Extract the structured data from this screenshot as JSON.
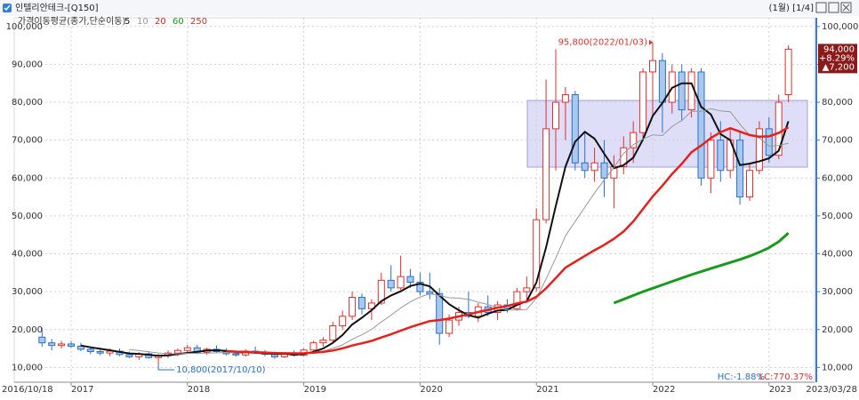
{
  "header": {
    "title": "인텔리안테크-[Q150]",
    "period": "(1월) [1/4]"
  },
  "chart_data": {
    "type": "candlestick",
    "indicator": "가격이동평균(종가,단순이동)",
    "categories": [
      "2016/10/18",
      null,
      null,
      "2017",
      null,
      null,
      null,
      null,
      null,
      null,
      null,
      null,
      null,
      null,
      null,
      "2018",
      null,
      null,
      null,
      null,
      null,
      null,
      null,
      null,
      null,
      null,
      null,
      "2019",
      null,
      null,
      null,
      null,
      null,
      null,
      null,
      null,
      null,
      null,
      null,
      "2020",
      null,
      null,
      null,
      null,
      null,
      null,
      null,
      null,
      null,
      null,
      null,
      "2021",
      null,
      null,
      null,
      null,
      null,
      null,
      null,
      null,
      null,
      null,
      null,
      "2022",
      null,
      null,
      null,
      null,
      null,
      null,
      null,
      null,
      null,
      null,
      null,
      "2023",
      null,
      "2023/03/28"
    ],
    "open": [
      18000,
      16500,
      15800,
      16200,
      15600,
      14800,
      14200,
      13800,
      14300,
      13400,
      12800,
      13600,
      12600,
      13100,
      13800,
      14500,
      15200,
      14000,
      14800,
      14200,
      13600,
      13300,
      14300,
      13900,
      13500,
      12800,
      13500,
      13200,
      14600,
      16500,
      17200,
      21000,
      23500,
      28500,
      25500,
      27000,
      33000,
      31000,
      34000,
      32500,
      30000,
      29500,
      19000,
      22500,
      24500,
      23500,
      26000,
      24500,
      26500,
      25500,
      30000,
      31000,
      49000,
      73000,
      80000,
      82000,
      64000,
      62000,
      64000,
      60000,
      63000,
      68000,
      72000,
      88000,
      91000,
      80000,
      88000,
      78000,
      88000,
      60000,
      70000,
      62000,
      70000,
      55000,
      62000,
      73000,
      66000,
      82000
    ],
    "high": [
      20500,
      17500,
      17000,
      17000,
      16500,
      15500,
      15200,
      15000,
      15000,
      14200,
      14000,
      14200,
      13500,
      14500,
      15000,
      16000,
      16000,
      15200,
      15800,
      15000,
      14500,
      14800,
      15500,
      14600,
      14200,
      14000,
      14500,
      15000,
      17000,
      18000,
      22000,
      25000,
      30000,
      29500,
      28000,
      35000,
      37000,
      39500,
      36000,
      35000,
      35000,
      31000,
      24000,
      26000,
      30000,
      27000,
      29000,
      27500,
      28000,
      31000,
      34000,
      52000,
      86000,
      94000,
      84000,
      83000,
      72000,
      68000,
      70000,
      66000,
      71000,
      75000,
      89000,
      95800,
      93000,
      90000,
      90000,
      89000,
      89000,
      72000,
      75000,
      73000,
      72000,
      64000,
      75000,
      76000,
      82000,
      95000
    ],
    "low": [
      15500,
      14500,
      15000,
      15200,
      14300,
      13500,
      13200,
      13000,
      13000,
      12500,
      12000,
      12300,
      10800,
      12500,
      13000,
      13800,
      13500,
      13300,
      13800,
      13200,
      12800,
      12900,
      13600,
      13000,
      12300,
      12500,
      12800,
      13000,
      14200,
      15500,
      16800,
      20000,
      22500,
      24000,
      22500,
      26500,
      30000,
      30500,
      31000,
      29000,
      28000,
      16000,
      18000,
      21000,
      23000,
      22000,
      23500,
      22500,
      24500,
      25000,
      28000,
      30000,
      48000,
      62000,
      70000,
      62000,
      60000,
      59000,
      55000,
      52000,
      61000,
      64000,
      70000,
      76000,
      72000,
      77000,
      75000,
      76000,
      58000,
      56000,
      59000,
      60000,
      53000,
      54000,
      61000,
      64000,
      65000,
      80000
    ],
    "close": [
      16500,
      15800,
      16200,
      15600,
      14800,
      14200,
      13800,
      14300,
      13400,
      12800,
      13600,
      12600,
      13100,
      13800,
      14500,
      15200,
      14000,
      14800,
      14200,
      13600,
      13300,
      14300,
      13900,
      13500,
      12800,
      13500,
      13200,
      14600,
      16500,
      17200,
      21000,
      23500,
      28500,
      25500,
      27000,
      33000,
      31000,
      34000,
      32500,
      30000,
      29500,
      19000,
      22500,
      24500,
      23500,
      26000,
      24500,
      26500,
      25500,
      30000,
      31000,
      49000,
      73000,
      80000,
      82000,
      64000,
      62000,
      64000,
      60000,
      63000,
      68000,
      72000,
      88000,
      91000,
      80000,
      88000,
      78000,
      88000,
      60000,
      70000,
      62000,
      70000,
      55000,
      62000,
      73000,
      66000,
      80000,
      94000
    ],
    "up_color": "#e0302c",
    "down_color": "#2a6fc9",
    "series": [
      {
        "name": "5",
        "color": "#111111",
        "width": 2,
        "values": [
          null,
          null,
          null,
          null,
          15780,
          15320,
          14920,
          14540,
          14100,
          13700,
          13580,
          13340,
          13100,
          13180,
          13520,
          13840,
          14120,
          14460,
          14540,
          14360,
          13980,
          14040,
          13860,
          13720,
          13560,
          13600,
          13380,
          13520,
          14120,
          15000,
          16500,
          18560,
          21340,
          23140,
          25100,
          27500,
          29000,
          30100,
          31500,
          32100,
          31400,
          29000,
          26700,
          25100,
          23800,
          23100,
          24200,
          25000,
          25200,
          26500,
          27500,
          32400,
          41700,
          52600,
          63000,
          69600,
          72200,
          70400,
          66400,
          62600,
          63400,
          65400,
          70200,
          76400,
          79800,
          83800,
          85000,
          85000,
          78800,
          76800,
          71600,
          70000,
          63400,
          63800,
          64400,
          65200,
          67200,
          75000
        ]
      },
      {
        "name": "10",
        "color": "#999999",
        "width": 1,
        "values": [
          null,
          null,
          null,
          null,
          null,
          null,
          null,
          null,
          null,
          14740,
          14450,
          14130,
          13820,
          13640,
          13610,
          13710,
          13730,
          13780,
          13860,
          13940,
          13910,
          14080,
          14160,
          14130,
          13960,
          13790,
          13710,
          13690,
          13920,
          14280,
          15050,
          15970,
          17430,
          18630,
          20050,
          22000,
          23780,
          25720,
          27320,
          28600,
          29450,
          29000,
          28400,
          28300,
          27950,
          27250,
          26600,
          25850,
          25150,
          25150,
          25300,
          28300,
          33350,
          38900,
          44750,
          48550,
          52300,
          56050,
          59500,
          62800,
          66500,
          68800,
          70300,
          71400,
          71200,
          73600,
          75200,
          77600,
          77600,
          78300,
          77700,
          77500,
          74200,
          71300,
          70600,
          68400,
          68600,
          69200
        ]
      },
      {
        "name": "20",
        "color": "#e8201c",
        "width": 2.5,
        "values": [
          null,
          null,
          null,
          null,
          null,
          null,
          null,
          null,
          null,
          null,
          null,
          null,
          null,
          null,
          null,
          null,
          null,
          null,
          null,
          14340,
          14180,
          14110,
          13990,
          13890,
          13790,
          13750,
          13720,
          13740,
          13890,
          14110,
          14480,
          15030,
          15800,
          16380,
          17010,
          17900,
          18750,
          19710,
          20620,
          21440,
          22250,
          22490,
          22920,
          23470,
          24000,
          24630,
          25190,
          25790,
          26240,
          26880,
          27380,
          28650,
          30880,
          33600,
          36350,
          37900,
          39450,
          40950,
          42330,
          43980,
          45900,
          48550,
          51830,
          55150,
          57980,
          61080,
          63750,
          66830,
          68550,
          70550,
          72100,
          73150,
          72250,
          71350,
          70900,
          71000,
          71900,
          73400
        ]
      },
      {
        "name": "60",
        "color": "#1a9a1a",
        "width": 3,
        "values": [
          null,
          null,
          null,
          null,
          null,
          null,
          null,
          null,
          null,
          null,
          null,
          null,
          null,
          null,
          null,
          null,
          null,
          null,
          null,
          null,
          null,
          null,
          null,
          null,
          null,
          null,
          null,
          null,
          null,
          null,
          null,
          null,
          null,
          null,
          null,
          null,
          null,
          null,
          null,
          null,
          null,
          null,
          null,
          null,
          null,
          null,
          null,
          null,
          null,
          null,
          null,
          null,
          null,
          null,
          null,
          null,
          null,
          null,
          null,
          27000,
          28000,
          29000,
          30000,
          30900,
          31800,
          32700,
          33600,
          34500,
          35300,
          36100,
          36900,
          37700,
          38500,
          39400,
          40400,
          41600,
          43200,
          45500
        ]
      },
      {
        "name": "250",
        "color": "#b03a2e",
        "width": 2,
        "values": [
          null,
          null,
          null,
          null,
          null,
          null,
          null,
          null,
          null,
          null,
          null,
          null,
          null,
          null,
          null,
          null,
          null,
          null,
          null,
          null,
          null,
          null,
          null,
          null,
          null,
          null,
          null,
          null,
          null,
          null,
          null,
          null,
          null,
          null,
          null,
          null,
          null,
          null,
          null,
          null,
          null,
          null,
          null,
          null,
          null,
          null,
          null,
          null,
          null,
          null,
          null,
          null,
          null,
          null,
          null,
          null,
          null,
          null,
          null,
          null,
          null,
          null,
          null,
          null,
          null,
          null,
          null,
          null,
          null,
          null,
          null,
          null,
          null,
          null,
          null,
          null,
          null,
          null
        ]
      }
    ],
    "ylim": [
      6100,
      102300
    ],
    "yticks": [
      {
        "value": 10000,
        "label": "10,000"
      },
      {
        "value": 20000,
        "label": "20,000"
      },
      {
        "value": 30000,
        "label": "30,000"
      },
      {
        "value": 40000,
        "label": "40,000"
      },
      {
        "value": 50000,
        "label": "50,000"
      },
      {
        "value": 60000,
        "label": "60,000"
      },
      {
        "value": 70000,
        "label": "70,000"
      },
      {
        "value": 80000,
        "label": "80,000"
      },
      {
        "value": 90000,
        "label": "90,000"
      },
      {
        "value": 100000,
        "label": "100,000"
      }
    ],
    "grid": true,
    "annotations": [
      {
        "label": "95,800(2022/01/03)",
        "value": 95800
      },
      {
        "label": "10,800(2017/10/10)",
        "value": 10800
      }
    ],
    "last_price": {
      "price": "94,000",
      "change_pct": "+8.29%",
      "change": "▲7,200"
    },
    "stats": {
      "hc": "HC:-1.88%",
      "lc": "LC:770.37%"
    }
  }
}
